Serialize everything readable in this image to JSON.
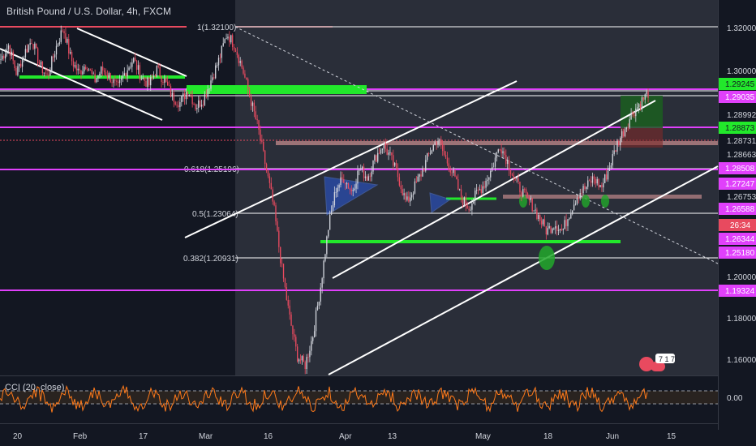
{
  "header": {
    "title": "British Pound / U.S. Dollar, 4h, FXCM"
  },
  "indicator": {
    "label": "CCI (20, close)",
    "zero_label": "0.00"
  },
  "badge": {
    "text": "7 1 7"
  },
  "colors": {
    "background": "#131722",
    "highlight_band": "#2a2e39",
    "up_candle": "#d1d4dc",
    "down_candle": "#e84a5f",
    "magenta": "#e040fb",
    "green": "#22e82b",
    "cci_line": "#ff7a1a"
  },
  "chart_data": {
    "type": "candlestick",
    "symbol": "GBPUSD",
    "timeframe": "4h",
    "x_tick_labels": [
      "20",
      "Feb",
      "17",
      "Mar",
      "16",
      "Apr",
      "13",
      "May",
      "18",
      "Jun",
      "15"
    ],
    "y_tick_labels": [
      "1.32000",
      "1.30000",
      "1.28992",
      "1.28731",
      "1.28663",
      "1.26753",
      "1.20000",
      "1.18000",
      "1.16000"
    ],
    "ylim": [
      1.145,
      1.335
    ],
    "price_tags": [
      {
        "value": "1.29245",
        "color": "#22e82b",
        "text_color": "#131722"
      },
      {
        "value": "1.29035",
        "color": "#e040fb",
        "text_color": "#ffffff"
      },
      {
        "value": "1.28873",
        "color": "#22e82b",
        "text_color": "#131722"
      },
      {
        "value": "1.28508",
        "color": "#e040fb",
        "text_color": "#ffffff"
      },
      {
        "value": "1.27247",
        "color": "#e040fb",
        "text_color": "#ffffff"
      },
      {
        "value": "1.26588",
        "color": "#e040fb",
        "text_color": "#ffffff"
      },
      {
        "value": "26:34",
        "color": "#e84a5f",
        "text_color": "#ffffff"
      },
      {
        "value": "1.26344",
        "color": "#e040fb",
        "text_color": "#ffffff"
      },
      {
        "value": "1.25180",
        "color": "#e040fb",
        "text_color": "#ffffff"
      },
      {
        "value": "1.19324",
        "color": "#e040fb",
        "text_color": "#ffffff"
      }
    ],
    "fib_levels": [
      {
        "label": "1(1.32100)",
        "price": 1.321
      },
      {
        "label": "0.618(1.25196)",
        "price": 1.25196
      },
      {
        "label": "0.5(1.23064)",
        "price": 1.23064
      },
      {
        "label": "0.382(1.20931)",
        "price": 1.20931
      }
    ],
    "close_path": [
      1.305,
      1.312,
      1.298,
      1.308,
      1.315,
      1.302,
      1.296,
      1.31,
      1.321,
      1.305,
      1.298,
      1.303,
      1.294,
      1.3,
      1.296,
      1.29,
      1.299,
      1.305,
      1.296,
      1.292,
      1.3,
      1.294,
      1.286,
      1.283,
      1.29,
      1.281,
      1.285,
      1.295,
      1.305,
      1.318,
      1.312,
      1.3,
      1.285,
      1.27,
      1.25,
      1.23,
      1.2,
      1.175,
      1.155,
      1.15,
      1.165,
      1.19,
      1.22,
      1.24,
      1.245,
      1.238,
      1.25,
      1.245,
      1.255,
      1.262,
      1.255,
      1.245,
      1.232,
      1.24,
      1.248,
      1.258,
      1.265,
      1.255,
      1.247,
      1.235,
      1.23,
      1.237,
      1.242,
      1.25,
      1.262,
      1.253,
      1.243,
      1.237,
      1.232,
      1.225,
      1.218,
      1.222,
      1.218,
      1.228,
      1.237,
      1.24,
      1.245,
      1.24,
      1.25,
      1.262,
      1.27,
      1.278,
      1.283,
      1.288
    ],
    "cci_range": [
      -250,
      250
    ]
  }
}
